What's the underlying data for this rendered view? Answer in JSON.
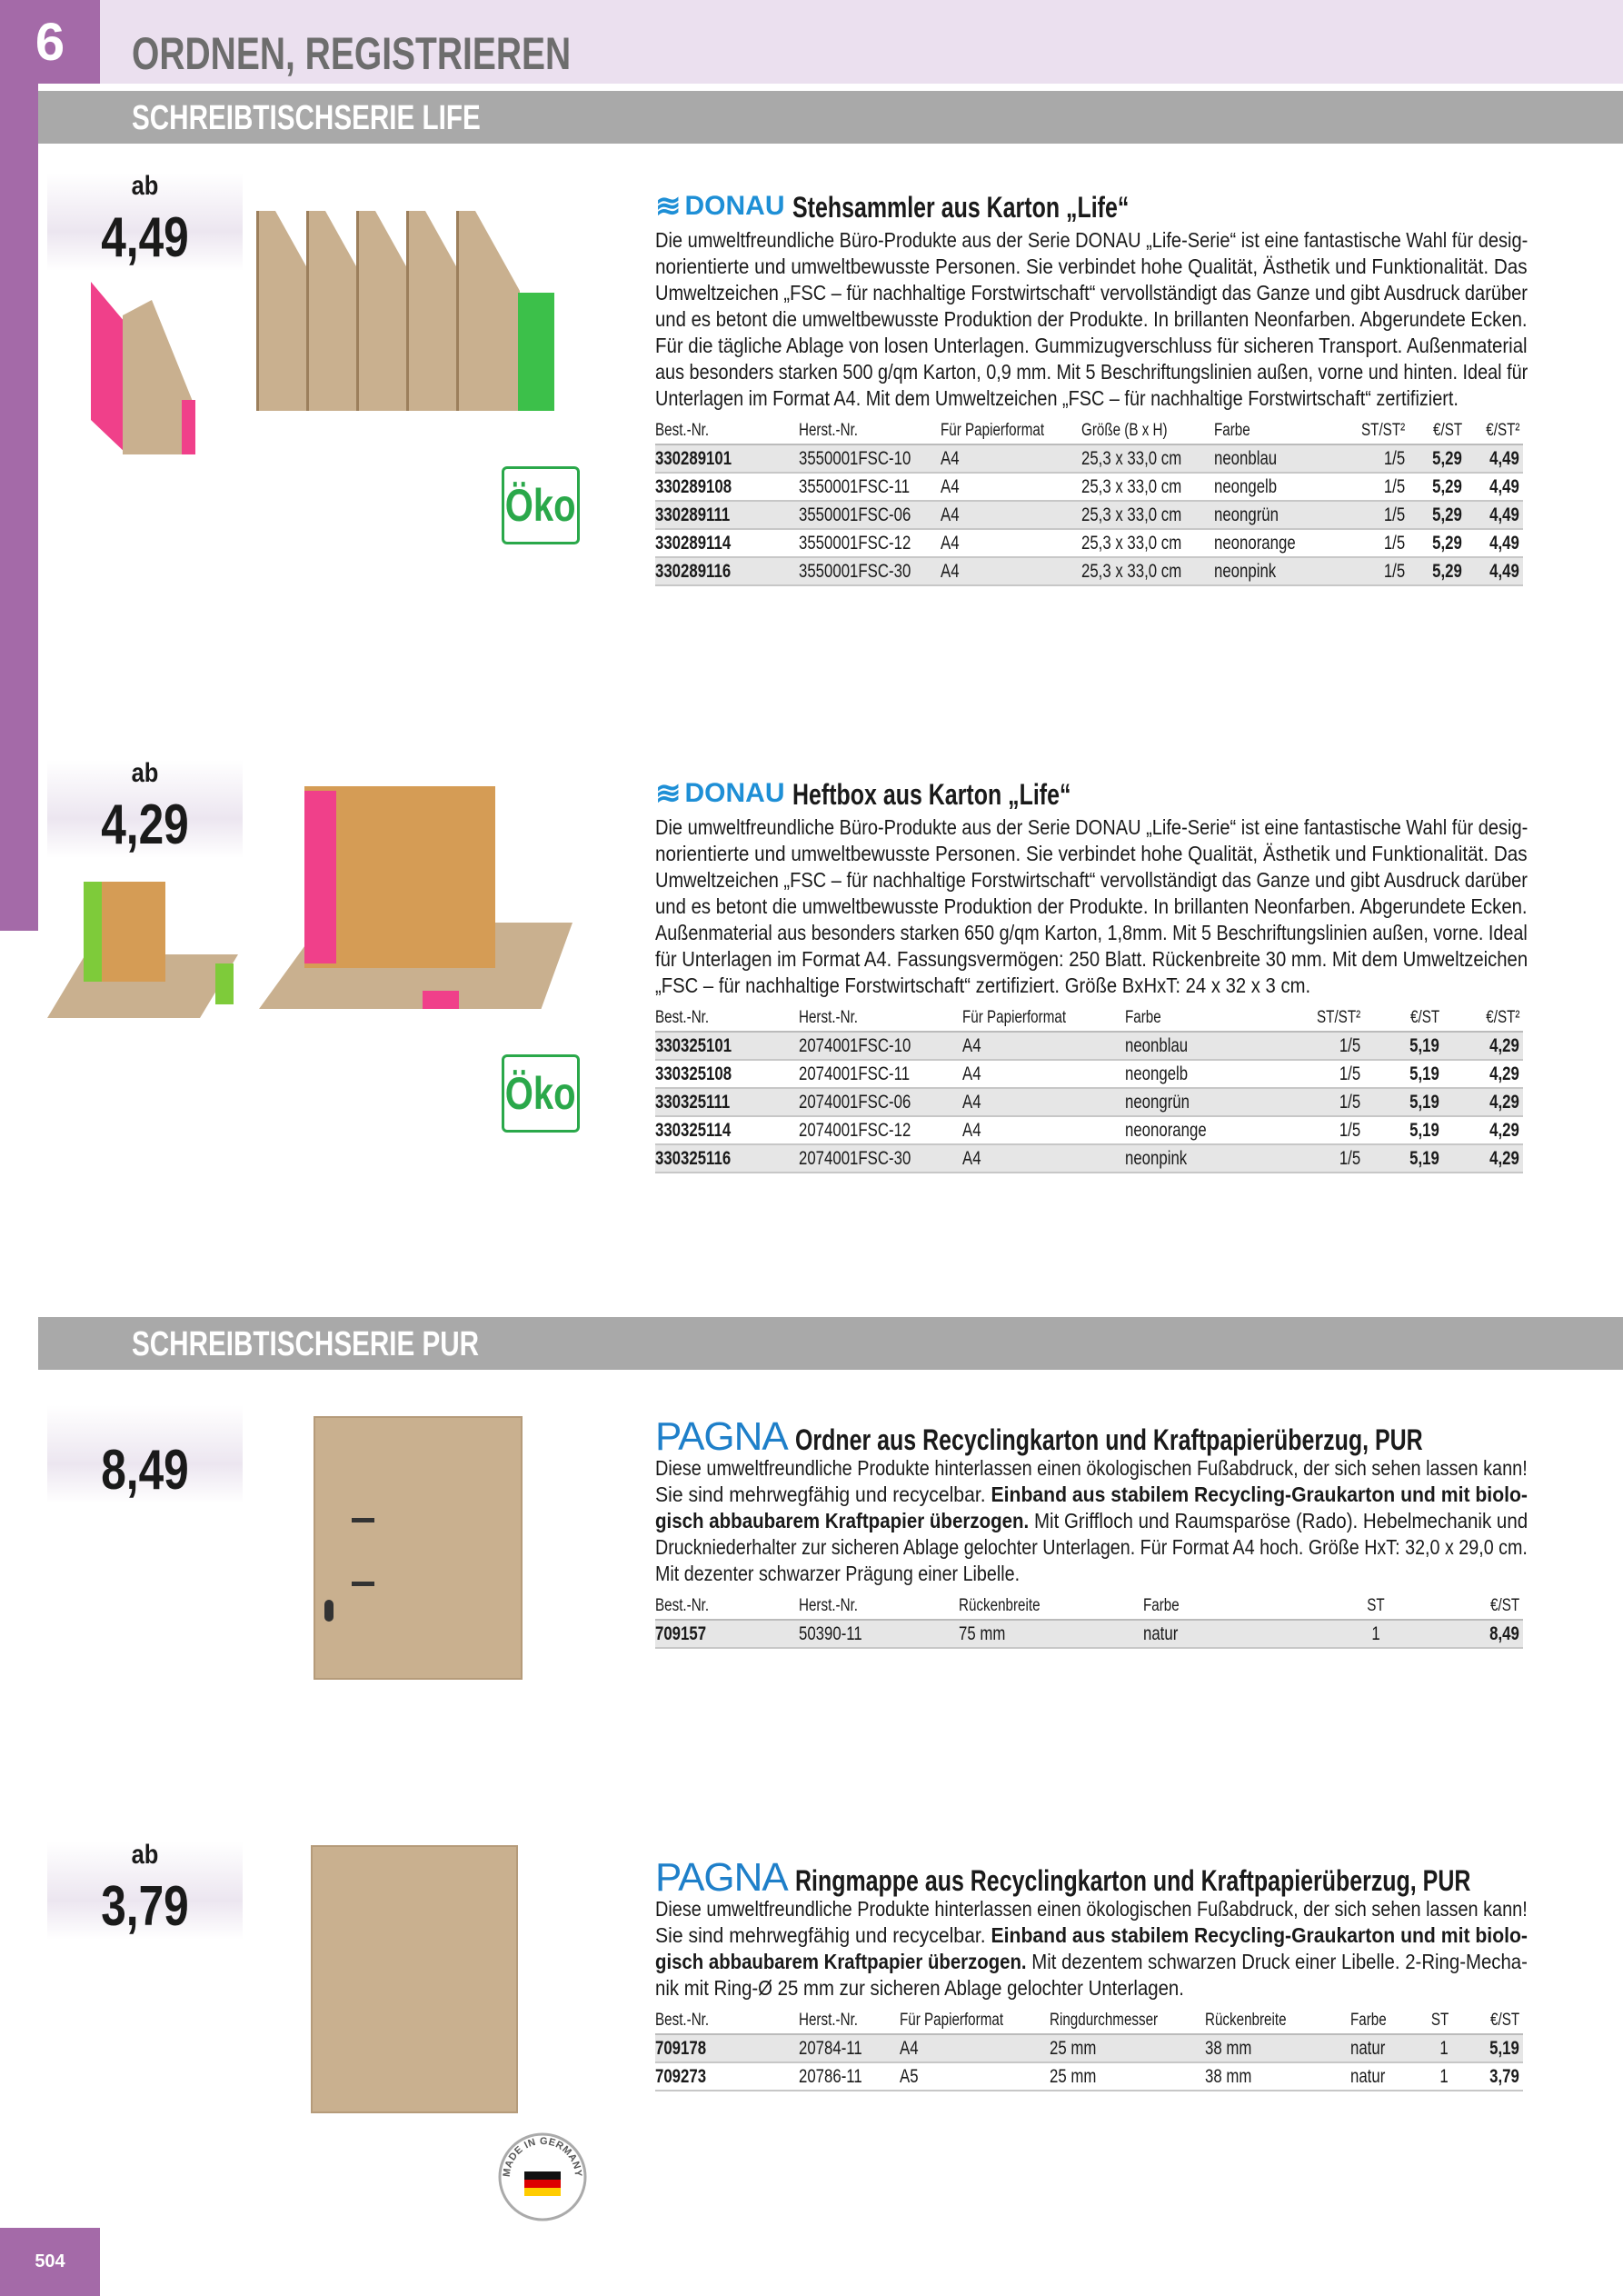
{
  "chapter": {
    "number": "6",
    "title": "ORDNEN, REGISTRIEREN"
  },
  "sections": [
    {
      "title": "SCHREIBTISCHSERIE LIFE"
    },
    {
      "title": "SCHREIBTISCHSERIE PUR"
    }
  ],
  "page_number": "504",
  "eco_badge": "Öko",
  "made_in_germany_badge": "MADE IN GERMANY",
  "products": [
    {
      "brand": "DONAU",
      "price_prefix": "ab",
      "price": "4,49",
      "title": "Stehsammler aus Karton „Life“",
      "description": [
        [
          {
            "t": "Die umweltfreundliche Büro-Produkte aus der Serie DONAU „Life-Serie“ ist eine fantastische Wahl für desig-"
          }
        ],
        [
          {
            "t": "norientierte und umweltbewusste Personen. Sie verbindet hohe Qualität, Ästhetik und Funktionalität. Das"
          }
        ],
        [
          {
            "t": "Umweltzeichen „FSC – für nachhaltige Forstwirtschaft“ vervollständigt das Ganze und gibt Ausdruck darüber"
          }
        ],
        [
          {
            "t": "und es betont die umweltbewusste Produktion der Produkte. In brillanten Neonfarben. Abgerundete Ecken."
          }
        ],
        [
          {
            "t": "Für die tägliche Ablage von losen Unterlagen. Gummizugverschluss für sicheren Transport. Außenmaterial"
          }
        ],
        [
          {
            "t": "aus besonders starken 500 g/qm Karton, 0,9 mm. Mit 5 Beschriftungslinien außen, vorne und hinten. Ideal für"
          }
        ],
        [
          {
            "t": "Unterlagen im Format A4. Mit dem Umweltzeichen „FSC – für nachhaltige Forstwirtschaft“ zertifiziert."
          }
        ]
      ],
      "columns": [
        "Best.-Nr.",
        "Herst.-Nr.",
        "Für Papierformat",
        "Größe (B x H)",
        "Farbe",
        "ST/ST²",
        "€/ST",
        "€/ST²"
      ],
      "rows": [
        [
          "330289101",
          "3550001FSC-10",
          "A4",
          "25,3 x 33,0 cm",
          "neonblau",
          "1/5",
          "5,29",
          "4,49"
        ],
        [
          "330289108",
          "3550001FSC-11",
          "A4",
          "25,3 x 33,0 cm",
          "neongelb",
          "1/5",
          "5,29",
          "4,49"
        ],
        [
          "330289111",
          "3550001FSC-06",
          "A4",
          "25,3 x 33,0 cm",
          "neongrün",
          "1/5",
          "5,29",
          "4,49"
        ],
        [
          "330289114",
          "3550001FSC-12",
          "A4",
          "25,3 x 33,0 cm",
          "neonorange",
          "1/5",
          "5,29",
          "4,49"
        ],
        [
          "330289116",
          "3550001FSC-30",
          "A4",
          "25,3 x 33,0 cm",
          "neonpink",
          "1/5",
          "5,29",
          "4,49"
        ]
      ]
    },
    {
      "brand": "DONAU",
      "price_prefix": "ab",
      "price": "4,29",
      "title": "Heftbox aus Karton „Life“",
      "description": [
        [
          {
            "t": "Die umweltfreundliche Büro-Produkte aus der Serie DONAU „Life-Serie“ ist eine fantastische Wahl für desig-"
          }
        ],
        [
          {
            "t": "norientierte und umweltbewusste Personen. Sie verbindet hohe Qualität, Ästhetik und Funktionalität. Das"
          }
        ],
        [
          {
            "t": "Umweltzeichen „FSC – für nachhaltige Forstwirtschaft“ vervollständigt das Ganze und gibt Ausdruck darüber"
          }
        ],
        [
          {
            "t": "und es betont die umweltbewusste Produktion der Produkte. In brillanten Neonfarben. Abgerundete Ecken."
          }
        ],
        [
          {
            "t": "Außenmaterial aus besonders starken 650 g/qm Karton, 1,8mm. Mit 5 Beschriftungslinien außen, vorne. Ideal"
          }
        ],
        [
          {
            "t": "für Unterlagen im Format A4. Fassungsvermögen: 250 Blatt. Rückenbreite 30 mm. Mit dem Umweltzeichen"
          }
        ],
        [
          {
            "t": "„FSC – für nachhaltige Forstwirtschaft“ zertifiziert. Größe BxHxT: 24 x 32 x 3 cm."
          }
        ]
      ],
      "columns": [
        "Best.-Nr.",
        "Herst.-Nr.",
        "Für Papierformat",
        "Farbe",
        "ST/ST²",
        "€/ST",
        "€/ST²"
      ],
      "rows": [
        [
          "330325101",
          "2074001FSC-10",
          "A4",
          "neonblau",
          "1/5",
          "5,19",
          "4,29"
        ],
        [
          "330325108",
          "2074001FSC-11",
          "A4",
          "neongelb",
          "1/5",
          "5,19",
          "4,29"
        ],
        [
          "330325111",
          "2074001FSC-06",
          "A4",
          "neongrün",
          "1/5",
          "5,19",
          "4,29"
        ],
        [
          "330325114",
          "2074001FSC-12",
          "A4",
          "neonorange",
          "1/5",
          "5,19",
          "4,29"
        ],
        [
          "330325116",
          "2074001FSC-30",
          "A4",
          "neonpink",
          "1/5",
          "5,19",
          "4,29"
        ]
      ]
    },
    {
      "brand": "PAGNA",
      "price_prefix": "",
      "price": "8,49",
      "title": "Ordner aus Recyclingkarton und Kraftpapierüberzug, PUR",
      "description": [
        [
          {
            "t": "Diese umweltfreundliche Produkte hinterlassen einen ökologischen Fußabdruck, der sich sehen lassen kann!"
          }
        ],
        [
          {
            "t": "Sie sind mehrwegfähig und recycelbar. "
          },
          {
            "t": "Einband aus stabilem Recycling-Graukarton und mit biolo-",
            "b": true
          }
        ],
        [
          {
            "t": "gisch abbaubarem Kraftpapier überzogen.",
            "b": true
          },
          {
            "t": " Mit Griffloch und Raumsparöse (Rado). Hebelmechanik und"
          }
        ],
        [
          {
            "t": "Druckniederhalter zur sicheren Ablage gelochter Unterlagen. Für Format A4 hoch. Größe HxT: 32,0 x 29,0 cm."
          }
        ],
        [
          {
            "t": "Mit dezenter schwarzer Prägung einer Libelle."
          }
        ]
      ],
      "columns": [
        "Best.-Nr.",
        "Herst.-Nr.",
        "Rückenbreite",
        "Farbe",
        "ST",
        "€/ST"
      ],
      "rows": [
        [
          "709157",
          "50390-11",
          "75 mm",
          "natur",
          "1",
          "8,49"
        ]
      ]
    },
    {
      "brand": "PAGNA",
      "price_prefix": "ab",
      "price": "3,79",
      "title": "Ringmappe aus Recyclingkarton und Kraftpapierüberzug, PUR",
      "description": [
        [
          {
            "t": "Diese umweltfreundliche Produkte hinterlassen einen ökologischen Fußabdruck, der sich sehen lassen kann!"
          }
        ],
        [
          {
            "t": "Sie sind mehrwegfähig und recycelbar. "
          },
          {
            "t": "Einband aus stabilem Recycling-Graukarton und mit biolo-",
            "b": true
          }
        ],
        [
          {
            "t": "gisch abbaubarem Kraftpapier überzogen.",
            "b": true
          },
          {
            "t": " Mit dezentem schwarzen Druck einer Libelle. 2-Ring-Mecha-"
          }
        ],
        [
          {
            "t": "nik mit Ring-Ø 25 mm zur sicheren Ablage gelochter Unterlagen."
          }
        ]
      ],
      "columns": [
        "Best.-Nr.",
        "Herst.-Nr.",
        "Für Papierformat",
        "Ringdurchmesser",
        "Rückenbreite",
        "Farbe",
        "ST",
        "€/ST"
      ],
      "rows": [
        [
          "709178",
          "20784-11",
          "A4",
          "25 mm",
          "38 mm",
          "natur",
          "1",
          "5,19"
        ],
        [
          "709273",
          "20786-11",
          "A5",
          "25 mm",
          "38 mm",
          "natur",
          "1",
          "3,79"
        ]
      ]
    }
  ],
  "colors": {
    "accent_purple": "#a46aa8",
    "header_band": "#ebe0ef",
    "section_bar": "#a9a9a9",
    "brand_blue": "#1e8fd6",
    "eco_green": "#2aa84a"
  }
}
